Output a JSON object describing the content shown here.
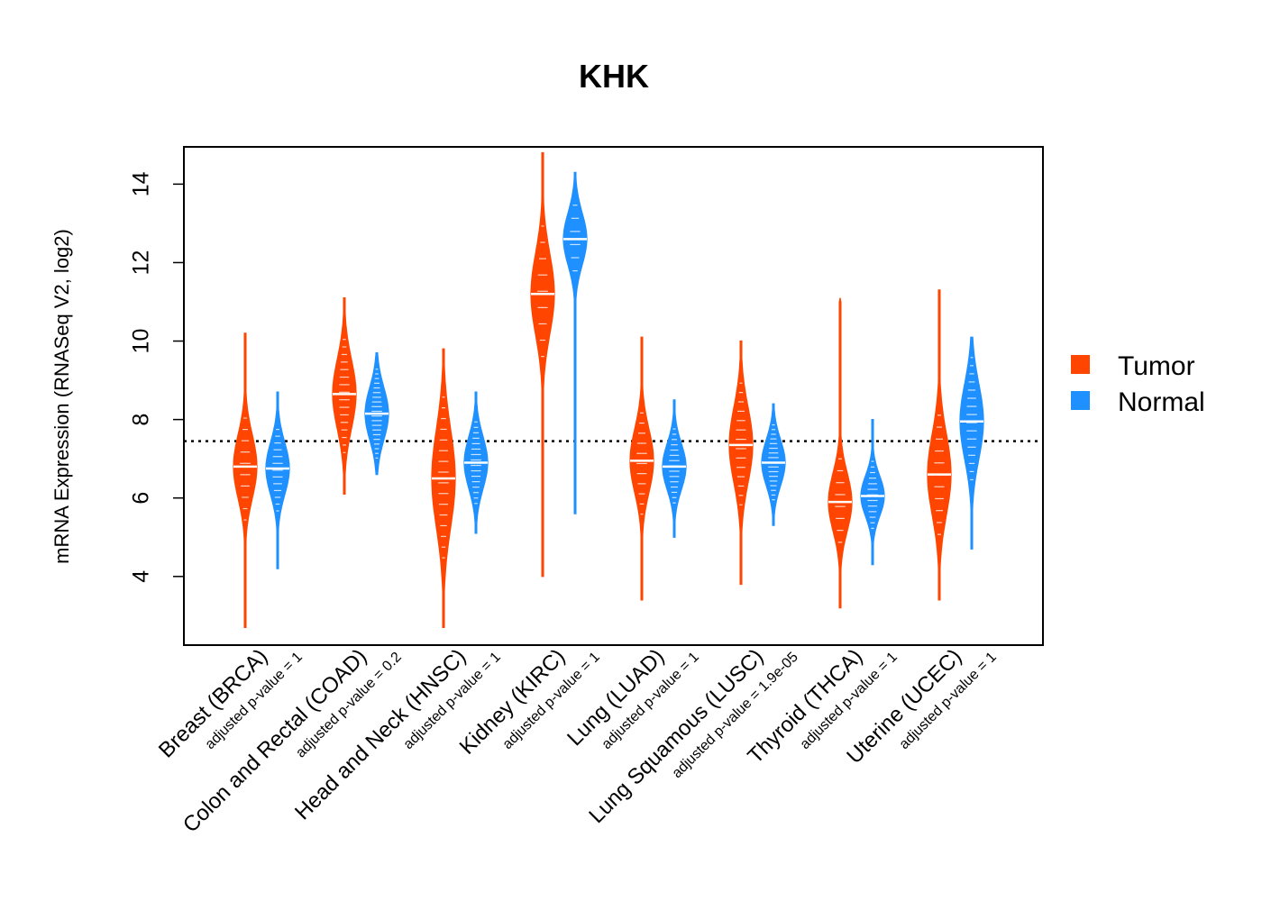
{
  "chart_data": {
    "type": "violin",
    "title": "KHK",
    "ylabel": "mRNA Expression (RNASeq V2, log2)",
    "xlabel": "",
    "ylim": [
      2.25,
      14.95
    ],
    "yticks": [
      "4",
      "6",
      "8",
      "10",
      "12",
      "14"
    ],
    "reference_line": 7.45,
    "legend": [
      {
        "name": "Tumor",
        "color": "#FF4500"
      },
      {
        "name": "Normal",
        "color": "#1E90FF"
      }
    ],
    "groups": [
      {
        "label": "Breast (BRCA)",
        "pvalue": "adjusted p-value = 1",
        "tumor": {
          "median": 6.8,
          "q1": 6.3,
          "q3": 7.4,
          "min": 2.7,
          "max": 10.2
        },
        "normal": {
          "median": 6.75,
          "q1": 6.3,
          "q3": 7.2,
          "min": 4.2,
          "max": 8.7
        }
      },
      {
        "label": "Colon and Rectal (COAD)",
        "pvalue": "adjusted p-value = 0.2",
        "tumor": {
          "median": 8.65,
          "q1": 8.1,
          "q3": 9.3,
          "min": 6.1,
          "max": 11.1
        },
        "normal": {
          "median": 8.15,
          "q1": 7.7,
          "q3": 8.6,
          "min": 6.6,
          "max": 9.7
        }
      },
      {
        "label": "Head and Neck (HNSC)",
        "pvalue": "adjusted p-value = 1",
        "tumor": {
          "median": 6.5,
          "q1": 5.6,
          "q3": 7.3,
          "min": 2.7,
          "max": 9.8
        },
        "normal": {
          "median": 6.9,
          "q1": 6.4,
          "q3": 7.3,
          "min": 5.1,
          "max": 8.7
        }
      },
      {
        "label": "Kidney (KIRC)",
        "pvalue": "adjusted p-value = 1",
        "tumor": {
          "median": 11.2,
          "q1": 10.6,
          "q3": 12.0,
          "min": 4.0,
          "max": 14.8
        },
        "normal": {
          "median": 12.6,
          "q1": 12.1,
          "q3": 13.0,
          "min": 5.6,
          "max": 14.3
        }
      },
      {
        "label": "Lung (LUAD)",
        "pvalue": "adjusted p-value = 1",
        "tumor": {
          "median": 6.95,
          "q1": 6.4,
          "q3": 7.5,
          "min": 3.4,
          "max": 10.1
        },
        "normal": {
          "median": 6.8,
          "q1": 6.4,
          "q3": 7.2,
          "min": 5.0,
          "max": 8.5
        }
      },
      {
        "label": "Lung Squamous (LUSC)",
        "pvalue": "adjusted p-value = 1.9e-05",
        "tumor": {
          "median": 7.35,
          "q1": 6.7,
          "q3": 8.0,
          "min": 3.8,
          "max": 10.0
        },
        "normal": {
          "median": 6.9,
          "q1": 6.5,
          "q3": 7.3,
          "min": 5.3,
          "max": 8.4
        }
      },
      {
        "label": "Thyroid (THCA)",
        "pvalue": "adjusted p-value = 1",
        "tumor": {
          "median": 5.9,
          "q1": 5.4,
          "q3": 6.4,
          "min": 3.2,
          "max": 11.1
        },
        "normal": {
          "median": 6.05,
          "q1": 5.7,
          "q3": 6.4,
          "min": 4.3,
          "max": 8.0
        }
      },
      {
        "label": "Uterine (UCEC)",
        "pvalue": "adjusted p-value = 1",
        "tumor": {
          "median": 6.6,
          "q1": 5.9,
          "q3": 7.3,
          "min": 3.4,
          "max": 11.3
        },
        "normal": {
          "median": 7.95,
          "q1": 7.0,
          "q3": 8.3,
          "min": 4.7,
          "max": 10.1
        }
      }
    ]
  }
}
